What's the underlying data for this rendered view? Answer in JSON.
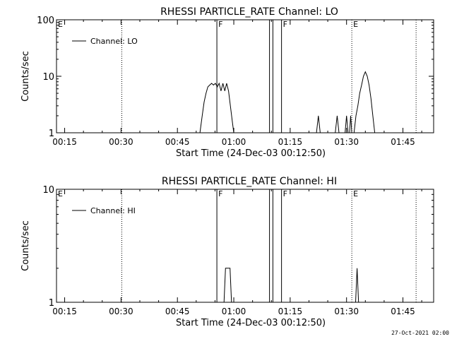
{
  "footer": {
    "timestamp": "27-Oct-2021 02:00"
  },
  "chart_data": [
    {
      "type": "line",
      "title": "RHESSI PARTICLE_RATE Channel: LO",
      "xlabel": "Start Time (24-Dec-03 00:12:50)",
      "ylabel": "Counts/sec",
      "y_scale": "log",
      "ylim": [
        1,
        100
      ],
      "y_ticks": [
        {
          "value": 1,
          "label": "1"
        },
        {
          "value": 10,
          "label": "10"
        },
        {
          "value": 100,
          "label": "100"
        }
      ],
      "x_tick_labels": [
        "00:15",
        "00:30",
        "00:45",
        "01:00",
        "01:15",
        "01:30",
        "01:45"
      ],
      "x_tick_values_min": [
        15,
        30,
        45,
        60,
        75,
        90,
        105
      ],
      "xlim_min": [
        12.83,
        113.17
      ],
      "legend": {
        "position": "top-left",
        "entries": [
          "Channel: LO"
        ]
      },
      "grid": false,
      "markers": [
        {
          "label": "E",
          "time_min": 12.83,
          "style": "dotted"
        },
        {
          "label": "",
          "time_min": 30.2,
          "style": "dotted"
        },
        {
          "label": "F",
          "time_min": 55.5,
          "style": "solid"
        },
        {
          "label": "",
          "time_min": 69.5,
          "style": "solid"
        },
        {
          "label": "",
          "time_min": 70.4,
          "style": "solid"
        },
        {
          "label": "F",
          "time_min": 72.7,
          "style": "solid"
        },
        {
          "label": "E",
          "time_min": 91.4,
          "style": "dotted"
        },
        {
          "label": "",
          "time_min": 108.5,
          "style": "dotted"
        }
      ],
      "series": [
        {
          "segments": [
            [
              [
                51.0,
                1.0
              ],
              [
                51.6,
                2.0
              ],
              [
                52.1,
                3.5
              ],
              [
                52.6,
                5.0
              ],
              [
                53.1,
                6.5
              ],
              [
                53.6,
                7.0
              ],
              [
                54.1,
                7.5
              ],
              [
                54.6,
                7.0
              ],
              [
                55.1,
                7.5
              ],
              [
                55.6,
                6.5
              ],
              [
                56.1,
                7.5
              ],
              [
                56.6,
                5.5
              ],
              [
                57.1,
                7.5
              ],
              [
                57.6,
                5.5
              ],
              [
                58.1,
                7.5
              ],
              [
                58.6,
                5.5
              ],
              [
                59.1,
                3.0
              ],
              [
                59.6,
                1.6
              ],
              [
                60.0,
                1.0
              ]
            ],
            [
              [
                82.0,
                1.0
              ],
              [
                82.5,
                2.0
              ],
              [
                83.0,
                1.0
              ]
            ],
            [
              [
                87.0,
                1.0
              ],
              [
                87.5,
                2.0
              ],
              [
                88.0,
                1.0
              ]
            ],
            [
              [
                89.6,
                1.0
              ],
              [
                90.0,
                2.0
              ],
              [
                90.4,
                1.0
              ]
            ],
            [
              [
                90.8,
                1.0
              ],
              [
                91.1,
                2.0
              ],
              [
                91.4,
                1.0
              ]
            ],
            [
              [
                92.0,
                1.0
              ],
              [
                92.5,
                2.0
              ],
              [
                93.0,
                3.0
              ],
              [
                93.5,
                5.0
              ],
              [
                94.0,
                7.0
              ],
              [
                94.5,
                10.0
              ],
              [
                95.0,
                12.0
              ],
              [
                95.5,
                10.0
              ],
              [
                96.0,
                7.0
              ],
              [
                96.5,
                4.0
              ],
              [
                97.0,
                2.0
              ],
              [
                97.5,
                1.0
              ]
            ]
          ]
        }
      ]
    },
    {
      "type": "line",
      "title": "RHESSI PARTICLE_RATE Channel: HI",
      "xlabel": "Start Time (24-Dec-03 00:12:50)",
      "ylabel": "Counts/sec",
      "y_scale": "log",
      "ylim": [
        1,
        10
      ],
      "y_ticks": [
        {
          "value": 1,
          "label": "1"
        },
        {
          "value": 10,
          "label": "10"
        }
      ],
      "x_tick_labels": [
        "00:15",
        "00:30",
        "00:45",
        "01:00",
        "01:15",
        "01:30",
        "01:45"
      ],
      "x_tick_values_min": [
        15,
        30,
        45,
        60,
        75,
        90,
        105
      ],
      "xlim_min": [
        12.83,
        113.17
      ],
      "legend": {
        "position": "top-left",
        "entries": [
          "Channel: HI"
        ]
      },
      "grid": false,
      "markers": [
        {
          "label": "E",
          "time_min": 12.83,
          "style": "dotted"
        },
        {
          "label": "",
          "time_min": 30.2,
          "style": "dotted"
        },
        {
          "label": "F",
          "time_min": 55.5,
          "style": "solid"
        },
        {
          "label": "",
          "time_min": 69.5,
          "style": "solid"
        },
        {
          "label": "",
          "time_min": 70.4,
          "style": "solid"
        },
        {
          "label": "F",
          "time_min": 72.7,
          "style": "solid"
        },
        {
          "label": "E",
          "time_min": 91.4,
          "style": "dotted"
        },
        {
          "label": "",
          "time_min": 108.5,
          "style": "dotted"
        }
      ],
      "series": [
        {
          "segments": [
            [
              [
                57.4,
                1.0
              ],
              [
                57.8,
                2.0
              ],
              [
                59.0,
                2.0
              ],
              [
                59.4,
                1.0
              ]
            ],
            [
              [
                92.4,
                1.0
              ],
              [
                92.8,
                2.0
              ],
              [
                93.2,
                1.0
              ]
            ]
          ]
        }
      ]
    }
  ]
}
